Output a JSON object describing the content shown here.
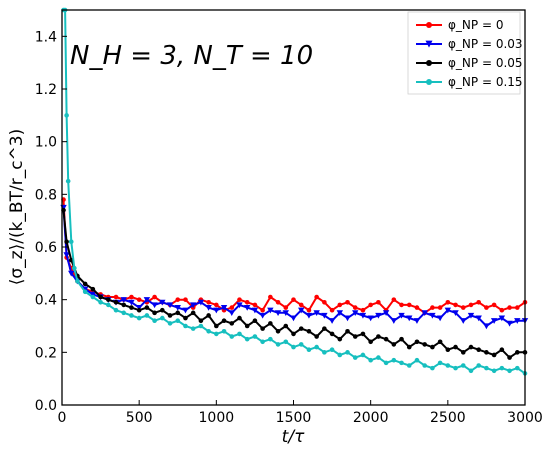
{
  "chart_data": {
    "type": "line",
    "annotation": "N_H = 3, N_T = 10",
    "xlabel": "t/τ",
    "ylabel": "⟨σ_z⟩/(k_BT/r_c^3)",
    "xlim": [
      0,
      3000
    ],
    "ylim": [
      0,
      1.5
    ],
    "xticks": [
      0,
      500,
      1000,
      1500,
      2000,
      2500,
      3000
    ],
    "xtick_labels": [
      "0",
      "500",
      "1000",
      "1500",
      "2000",
      "2500",
      "3000"
    ],
    "yticks": [
      0,
      0.2,
      0.4,
      0.6,
      0.8,
      1.0,
      1.2,
      1.4
    ],
    "ytick_labels": [
      "0.0",
      "0.2",
      "0.4",
      "0.6",
      "0.8",
      "1.0",
      "1.2",
      "1.4"
    ],
    "grid": false,
    "legend_position": "top-right",
    "series": [
      {
        "name": "φ_NP = 0",
        "legend": "phi-NP = 0",
        "color": "#ff0000",
        "marker": "circle",
        "x": [
          10,
          30,
          60,
          100,
          150,
          200,
          250,
          300,
          350,
          400,
          450,
          500,
          550,
          600,
          650,
          700,
          750,
          800,
          850,
          900,
          950,
          1000,
          1050,
          1100,
          1150,
          1200,
          1250,
          1300,
          1350,
          1400,
          1450,
          1500,
          1550,
          1600,
          1650,
          1700,
          1750,
          1800,
          1850,
          1900,
          1950,
          2000,
          2050,
          2100,
          2150,
          2200,
          2250,
          2300,
          2350,
          2400,
          2450,
          2500,
          2550,
          2600,
          2650,
          2700,
          2750,
          2800,
          2850,
          2900,
          2950,
          3000
        ],
        "y": [
          0.78,
          0.56,
          0.52,
          0.47,
          0.44,
          0.43,
          0.42,
          0.41,
          0.41,
          0.4,
          0.41,
          0.4,
          0.39,
          0.41,
          0.39,
          0.38,
          0.4,
          0.4,
          0.37,
          0.4,
          0.39,
          0.38,
          0.36,
          0.37,
          0.4,
          0.39,
          0.38,
          0.36,
          0.41,
          0.39,
          0.37,
          0.4,
          0.38,
          0.36,
          0.41,
          0.39,
          0.36,
          0.38,
          0.39,
          0.37,
          0.36,
          0.38,
          0.39,
          0.36,
          0.4,
          0.38,
          0.38,
          0.37,
          0.35,
          0.37,
          0.37,
          0.39,
          0.38,
          0.37,
          0.38,
          0.39,
          0.37,
          0.38,
          0.36,
          0.37,
          0.37,
          0.39
        ]
      },
      {
        "name": "φ_NP = 0.03",
        "legend": "phi-NP = 0.03",
        "color": "#0000ee",
        "marker": "triangle-down",
        "x": [
          10,
          30,
          60,
          100,
          150,
          200,
          250,
          300,
          350,
          400,
          450,
          500,
          550,
          600,
          650,
          700,
          750,
          800,
          850,
          900,
          950,
          1000,
          1050,
          1100,
          1150,
          1200,
          1250,
          1300,
          1350,
          1400,
          1450,
          1500,
          1550,
          1600,
          1650,
          1700,
          1750,
          1800,
          1850,
          1900,
          1950,
          2000,
          2050,
          2100,
          2150,
          2200,
          2250,
          2300,
          2350,
          2400,
          2450,
          2500,
          2550,
          2600,
          2650,
          2700,
          2750,
          2800,
          2850,
          2900,
          2950,
          3000
        ],
        "y": [
          0.75,
          0.57,
          0.5,
          0.47,
          0.44,
          0.42,
          0.41,
          0.4,
          0.39,
          0.4,
          0.39,
          0.37,
          0.4,
          0.38,
          0.39,
          0.38,
          0.37,
          0.36,
          0.38,
          0.39,
          0.37,
          0.36,
          0.37,
          0.35,
          0.38,
          0.37,
          0.36,
          0.34,
          0.36,
          0.35,
          0.35,
          0.33,
          0.36,
          0.34,
          0.35,
          0.34,
          0.32,
          0.35,
          0.33,
          0.35,
          0.34,
          0.33,
          0.34,
          0.35,
          0.32,
          0.34,
          0.33,
          0.32,
          0.35,
          0.34,
          0.33,
          0.36,
          0.35,
          0.32,
          0.34,
          0.33,
          0.3,
          0.32,
          0.33,
          0.31,
          0.32,
          0.32
        ]
      },
      {
        "name": "φ_NP = 0.05",
        "legend": "phi-NP = 0.05",
        "color": "#000000",
        "marker": "circle",
        "x": [
          10,
          30,
          60,
          100,
          150,
          200,
          250,
          300,
          350,
          400,
          450,
          500,
          550,
          600,
          650,
          700,
          750,
          800,
          850,
          900,
          950,
          1000,
          1050,
          1100,
          1150,
          1200,
          1250,
          1300,
          1350,
          1400,
          1450,
          1500,
          1550,
          1600,
          1650,
          1700,
          1750,
          1800,
          1850,
          1900,
          1950,
          2000,
          2050,
          2100,
          2150,
          2200,
          2250,
          2300,
          2350,
          2400,
          2450,
          2500,
          2550,
          2600,
          2650,
          2700,
          2750,
          2800,
          2850,
          2900,
          2950,
          3000
        ],
        "y": [
          0.74,
          0.62,
          0.55,
          0.49,
          0.46,
          0.44,
          0.41,
          0.4,
          0.39,
          0.38,
          0.37,
          0.36,
          0.37,
          0.35,
          0.36,
          0.34,
          0.35,
          0.33,
          0.35,
          0.32,
          0.34,
          0.3,
          0.32,
          0.31,
          0.33,
          0.3,
          0.32,
          0.29,
          0.31,
          0.28,
          0.3,
          0.27,
          0.29,
          0.28,
          0.26,
          0.29,
          0.27,
          0.25,
          0.28,
          0.26,
          0.27,
          0.24,
          0.26,
          0.25,
          0.23,
          0.25,
          0.22,
          0.24,
          0.23,
          0.22,
          0.24,
          0.21,
          0.22,
          0.2,
          0.22,
          0.21,
          0.2,
          0.19,
          0.21,
          0.18,
          0.2,
          0.2
        ]
      },
      {
        "name": "φ_NP = 0.15",
        "legend": "phi-NP = 0.15",
        "color": "#17bfbf",
        "marker": "circle",
        "x": [
          10,
          20,
          30,
          40,
          60,
          80,
          100,
          150,
          200,
          250,
          300,
          350,
          400,
          450,
          500,
          550,
          600,
          650,
          700,
          750,
          800,
          850,
          900,
          950,
          1000,
          1050,
          1100,
          1150,
          1200,
          1250,
          1300,
          1350,
          1400,
          1450,
          1500,
          1550,
          1600,
          1650,
          1700,
          1750,
          1800,
          1850,
          1900,
          1950,
          2000,
          2050,
          2100,
          2150,
          2200,
          2250,
          2300,
          2350,
          2400,
          2450,
          2500,
          2550,
          2600,
          2650,
          2700,
          2750,
          2800,
          2850,
          2900,
          2950,
          3000
        ],
        "y": [
          1.5,
          1.5,
          1.1,
          0.85,
          0.62,
          0.52,
          0.47,
          0.43,
          0.41,
          0.39,
          0.38,
          0.36,
          0.35,
          0.34,
          0.33,
          0.34,
          0.32,
          0.33,
          0.31,
          0.32,
          0.3,
          0.29,
          0.3,
          0.28,
          0.27,
          0.28,
          0.26,
          0.27,
          0.25,
          0.26,
          0.24,
          0.25,
          0.23,
          0.24,
          0.22,
          0.23,
          0.21,
          0.22,
          0.2,
          0.21,
          0.19,
          0.2,
          0.18,
          0.19,
          0.17,
          0.18,
          0.16,
          0.17,
          0.16,
          0.15,
          0.17,
          0.15,
          0.14,
          0.16,
          0.15,
          0.14,
          0.15,
          0.13,
          0.15,
          0.14,
          0.13,
          0.14,
          0.13,
          0.14,
          0.12
        ]
      }
    ]
  }
}
